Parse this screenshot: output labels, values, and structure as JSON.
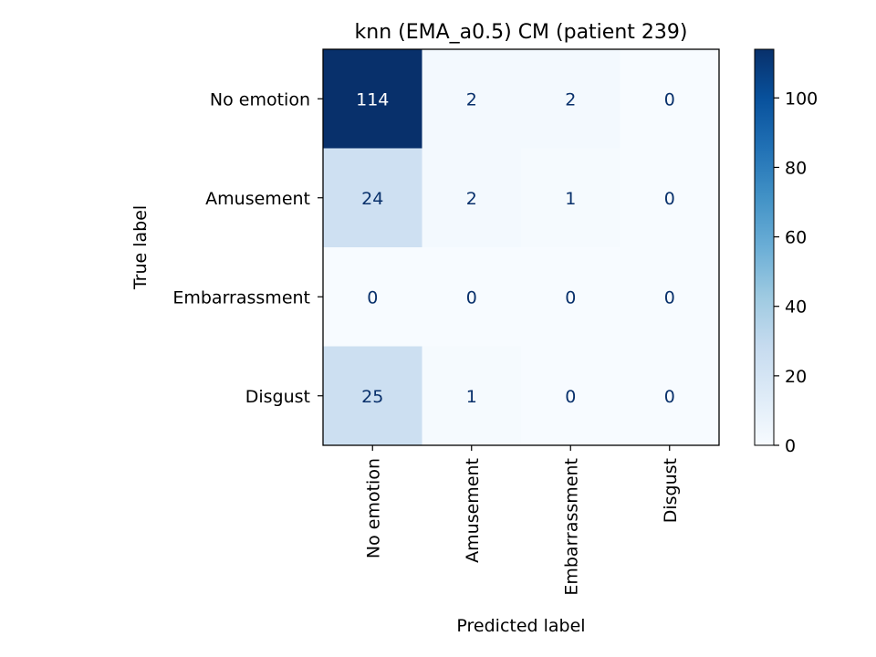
{
  "chart_data": {
    "type": "heatmap",
    "title": "knn (EMA_a0.5) CM (patient 239)",
    "xlabel": "Predicted label",
    "ylabel": "True label",
    "x_categories": [
      "No emotion",
      "Amusement",
      "Embarrassment",
      "Disgust"
    ],
    "y_categories": [
      "No emotion",
      "Amusement",
      "Embarrassment",
      "Disgust"
    ],
    "matrix": [
      [
        114,
        2,
        2,
        0
      ],
      [
        24,
        2,
        1,
        0
      ],
      [
        0,
        0,
        0,
        0
      ],
      [
        25,
        1,
        0,
        0
      ]
    ],
    "colormap": "Blues",
    "colorbar": {
      "range": [
        0,
        114
      ],
      "ticks": [
        0,
        20,
        40,
        60,
        80,
        100
      ],
      "tick_labels": [
        "0",
        "20",
        "40",
        "60",
        "80",
        "100"
      ]
    },
    "colors": {
      "cmap_low": "#f7fbff",
      "cmap_high": "#08306b",
      "text_dark": "#08306b",
      "text_light": "#ffffff"
    }
  }
}
